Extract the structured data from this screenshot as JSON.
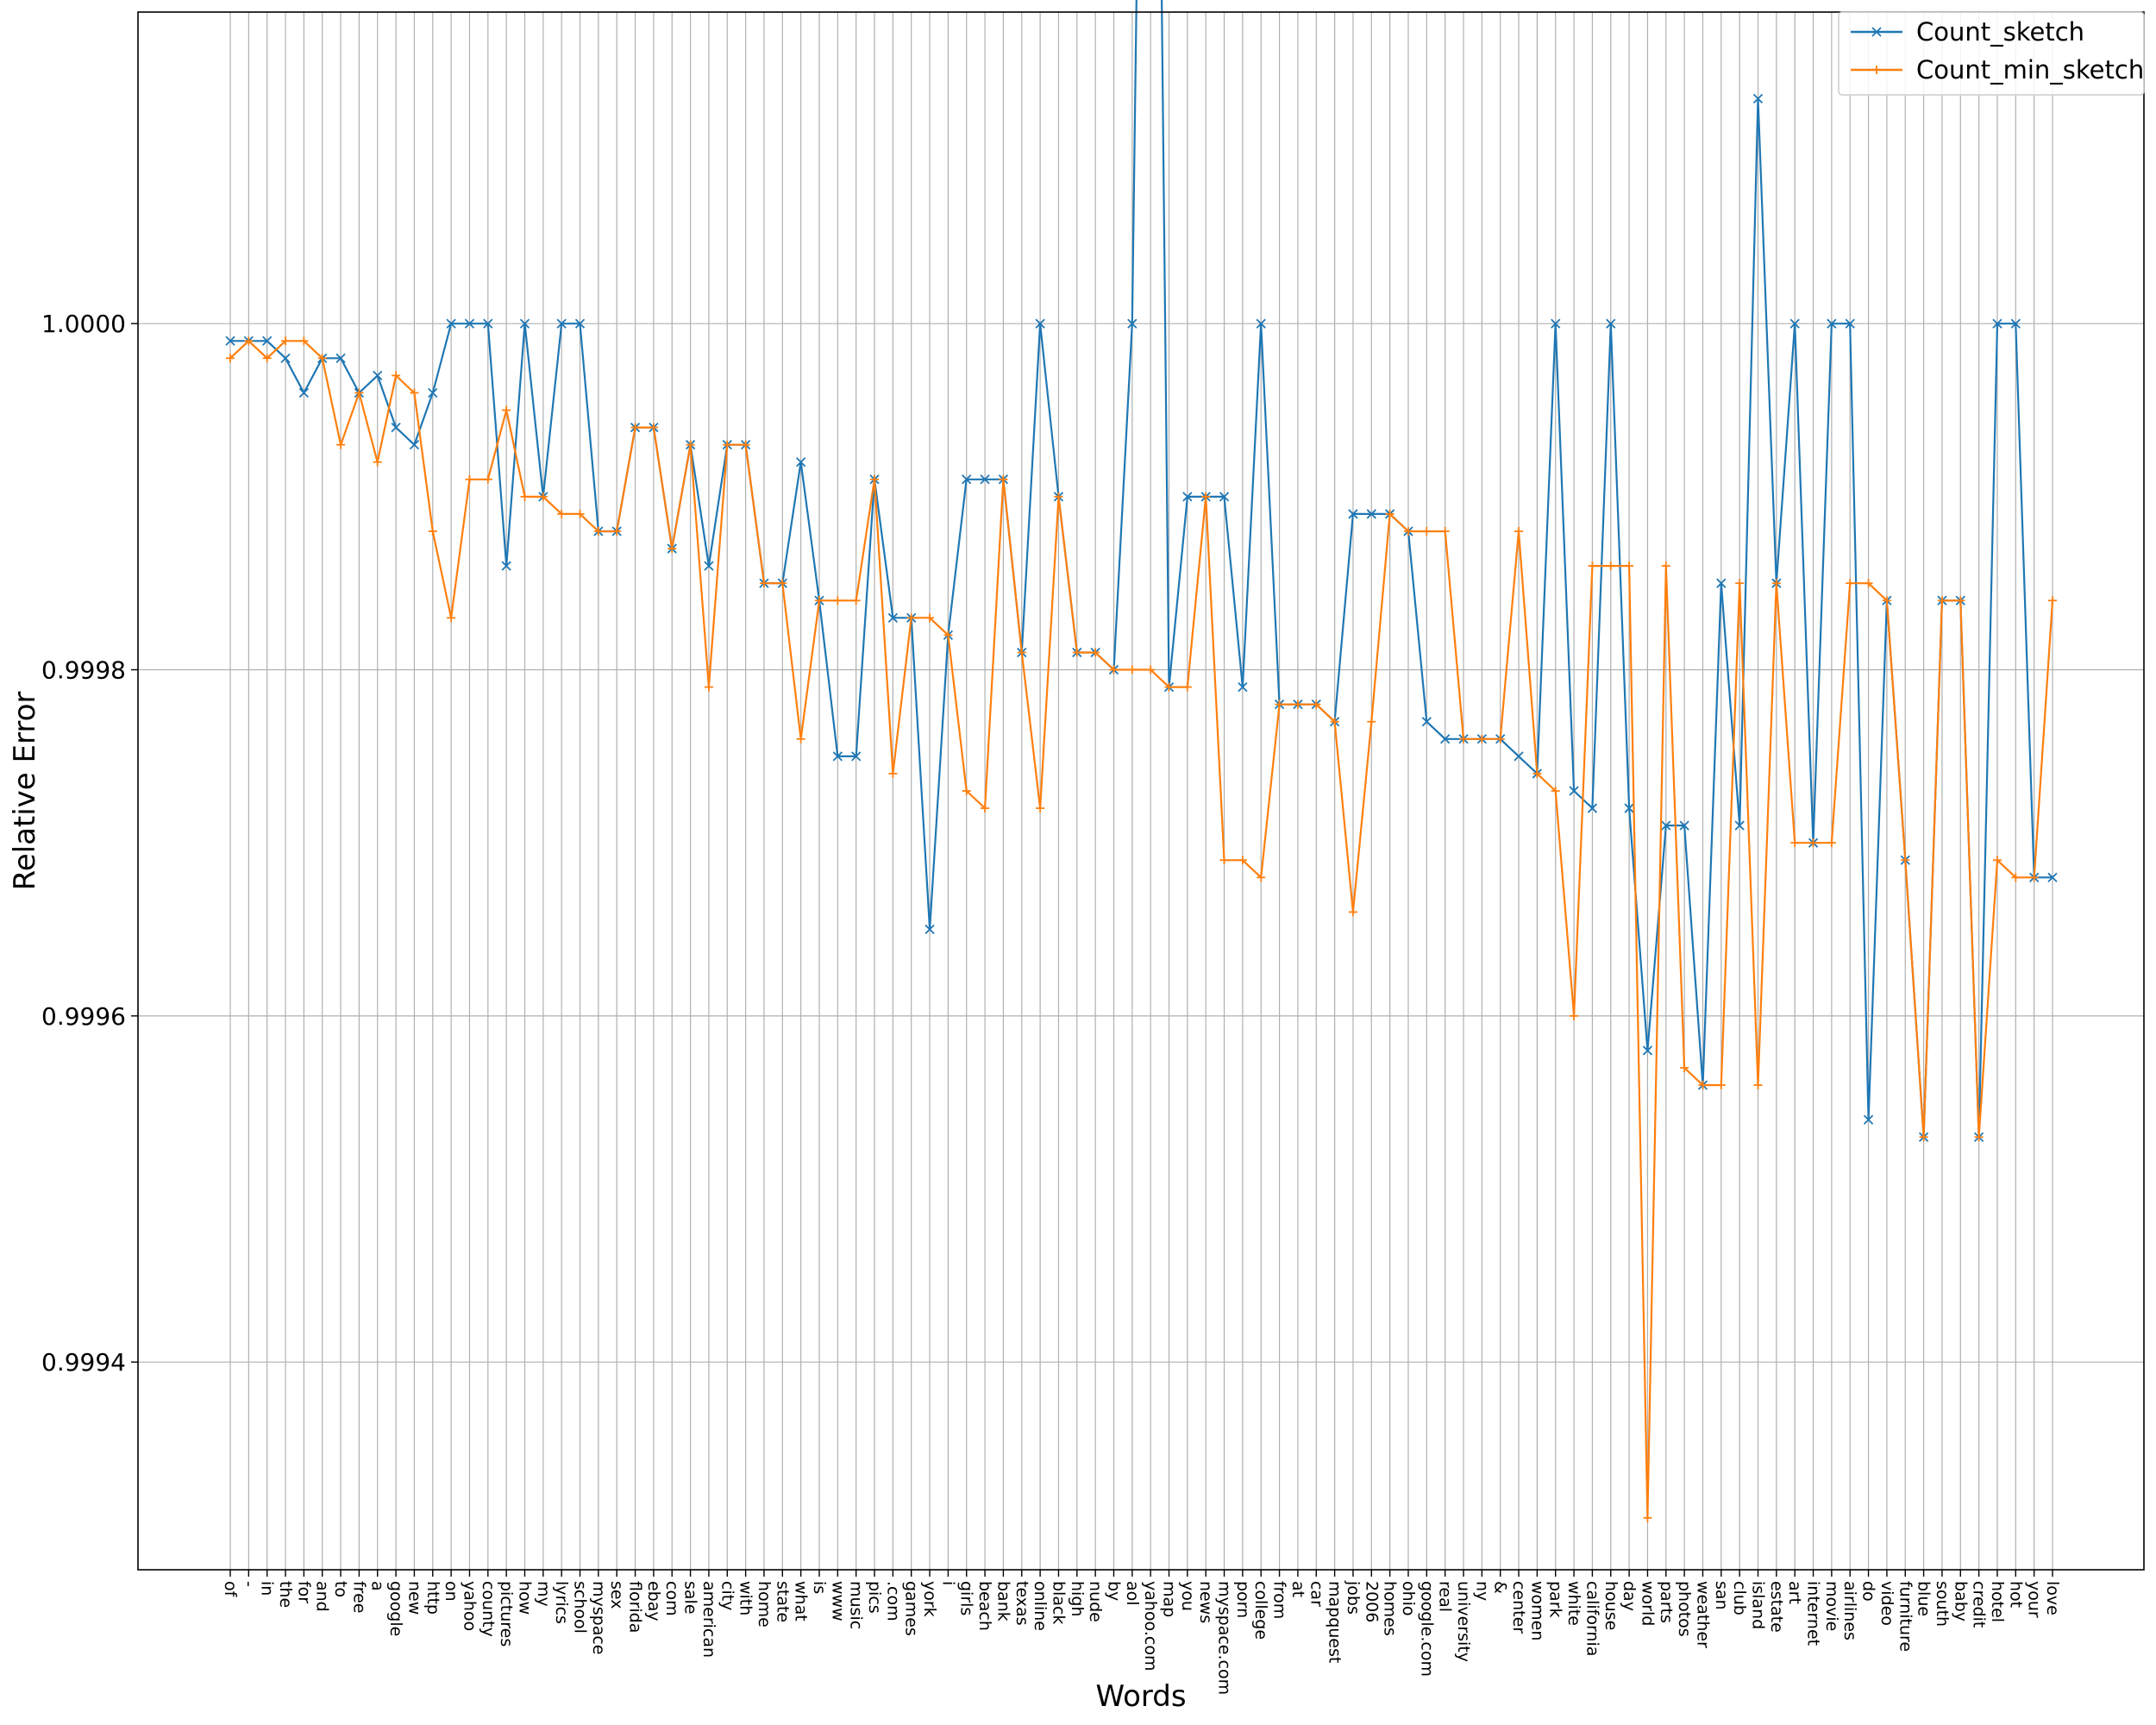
{
  "chart_data": {
    "type": "line",
    "title": "",
    "xlabel": "Words",
    "ylabel": "Relative  Error",
    "ylim": [
      0.99928,
      1.00018
    ],
    "yticks": [
      0.9994,
      0.9996,
      0.9998,
      1.0
    ],
    "ytick_labels": [
      "0.9994",
      "0.9996",
      "0.9998",
      "1.0000"
    ],
    "grid": true,
    "legend_position": "top-right",
    "categories": [
      "of",
      "-",
      "in",
      "the",
      "for",
      "and",
      "to",
      "free",
      "a",
      "google",
      "new",
      "http",
      "on",
      "yahoo",
      "county",
      "pictures",
      "how",
      "my",
      "lyrics",
      "school",
      "myspace",
      "sex",
      "florida",
      "ebay",
      "com",
      "sale",
      "american",
      "city",
      "with",
      "home",
      "state",
      "what",
      "is",
      "www",
      "music",
      "pics",
      ".com",
      "games",
      "york",
      "i",
      "girls",
      "beach",
      "bank",
      "texas",
      "online",
      "black",
      "high",
      "nude",
      "by",
      "aol",
      "yahoo.com",
      "map",
      "you",
      "news",
      "myspace.com",
      "porn",
      "college",
      "from",
      "at",
      "car",
      "mapquest",
      "jobs",
      "2006",
      "homes",
      "ohio",
      "google.com",
      "real",
      "university",
      "ny",
      "&",
      "center",
      "women",
      "park",
      "white",
      "california",
      "house",
      "day",
      "world",
      "parts",
      "photos",
      "weather",
      "san",
      "club",
      "island",
      "estate",
      "art",
      "internet",
      "movie",
      "airlines",
      "do",
      "video",
      "furniture",
      "blue",
      "south",
      "baby",
      "credit",
      "hotel",
      "hot",
      "your",
      "love"
    ],
    "series": [
      {
        "name": "Count_sketch",
        "color": "#1f77b4",
        "marker": "x",
        "values": [
          0.99999,
          0.99999,
          0.99999,
          0.99998,
          0.99996,
          0.99998,
          0.99998,
          0.99996,
          0.99997,
          0.99994,
          0.99993,
          0.99996,
          1.0,
          1.0,
          1.0,
          0.99986,
          1.0,
          0.9999,
          1.0,
          1.0,
          0.99988,
          0.99988,
          0.99994,
          0.99994,
          0.99987,
          0.99993,
          0.99986,
          0.99993,
          0.99993,
          0.99985,
          0.99985,
          0.99992,
          0.99984,
          0.99975,
          0.99975,
          0.99991,
          0.99983,
          0.99983,
          0.99965,
          0.99982,
          0.99991,
          0.99991,
          0.99991,
          0.99981,
          1.0,
          0.9999,
          0.99981,
          0.99981,
          0.9998,
          1.0,
          1.0008,
          0.99979,
          0.9999,
          0.9999,
          0.9999,
          0.99979,
          1.0,
          0.99978,
          0.99978,
          0.99978,
          0.99977,
          0.99989,
          0.99989,
          0.99989,
          0.99988,
          0.99977,
          0.99976,
          0.99976,
          0.99976,
          0.99976,
          0.99975,
          0.99974,
          1.0,
          0.99973,
          0.99972,
          1.0,
          0.99972,
          0.99958,
          0.99971,
          0.99971,
          0.99956,
          0.99985,
          0.99971,
          1.00013,
          0.99985,
          1.0,
          0.9997,
          1.0,
          1.0,
          0.99954,
          0.99984,
          0.99969,
          0.99953,
          0.99984,
          0.99984,
          0.99953,
          1.0,
          1.0,
          0.99968,
          0.99968
        ]
      },
      {
        "name": "Count_min_sketch",
        "color": "#ff7f0e",
        "marker": "+",
        "values": [
          0.99998,
          0.99999,
          0.99998,
          0.99999,
          0.99999,
          0.99998,
          0.99993,
          0.99996,
          0.99992,
          0.99997,
          0.99996,
          0.99988,
          0.99983,
          0.99991,
          0.99991,
          0.99995,
          0.9999,
          0.9999,
          0.99989,
          0.99989,
          0.99988,
          0.99988,
          0.99994,
          0.99994,
          0.99987,
          0.99993,
          0.99979,
          0.99993,
          0.99993,
          0.99985,
          0.99985,
          0.99976,
          0.99984,
          0.99984,
          0.99984,
          0.99991,
          0.99974,
          0.99983,
          0.99983,
          0.99982,
          0.99973,
          0.99972,
          0.99991,
          0.99981,
          0.99972,
          0.9999,
          0.99981,
          0.99981,
          0.9998,
          0.9998,
          0.9998,
          0.99979,
          0.99979,
          0.9999,
          0.99969,
          0.99969,
          0.99968,
          0.99978,
          0.99978,
          0.99978,
          0.99977,
          0.99966,
          0.99977,
          0.99989,
          0.99988,
          0.99988,
          0.99988,
          0.99976,
          0.99976,
          0.99976,
          0.99988,
          0.99974,
          0.99973,
          0.9996,
          0.99986,
          0.99986,
          0.99986,
          0.99931,
          0.99986,
          0.99957,
          0.99956,
          0.99956,
          0.99985,
          0.99956,
          0.99985,
          0.9997,
          0.9997,
          0.9997,
          0.99985,
          0.99985,
          0.99984,
          0.99969,
          0.99953,
          0.99984,
          0.99984,
          0.99953,
          0.99969,
          0.99968,
          0.99968,
          0.99984
        ]
      }
    ]
  }
}
